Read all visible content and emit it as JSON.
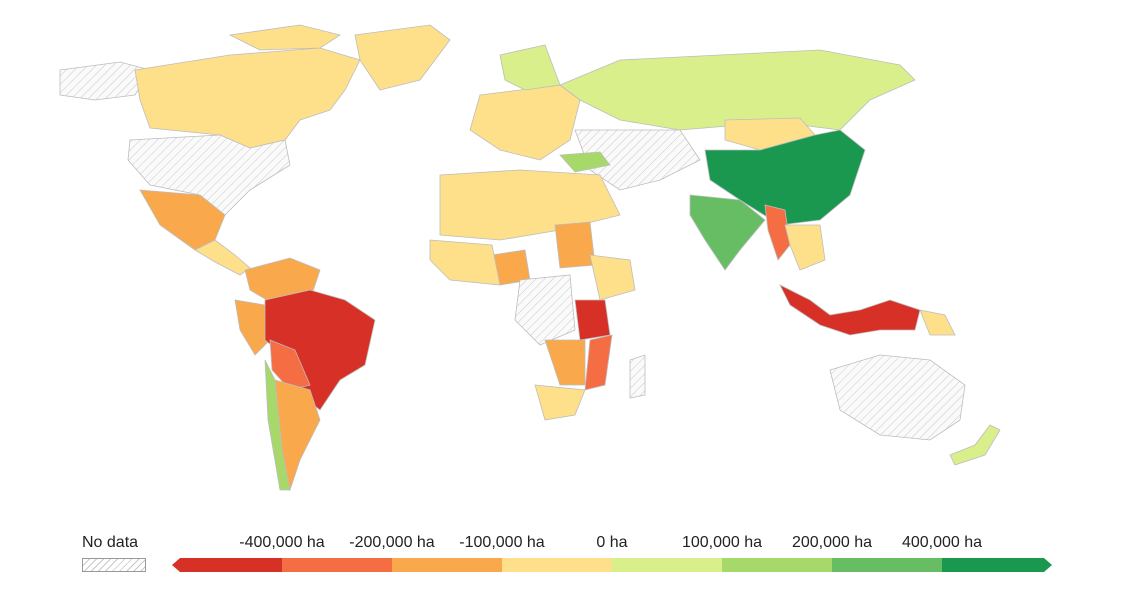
{
  "legend": {
    "no_data_label": "No data",
    "ticks": [
      "-400,000 ha",
      "-200,000 ha",
      "-100,000 ha",
      "0 ha",
      "100,000 ha",
      "200,000 ha",
      "400,000 ha"
    ],
    "colors": [
      "#d73027",
      "#f46d43",
      "#f9a94b",
      "#fee08b",
      "#d9ef8b",
      "#a6d96a",
      "#66bd63",
      "#1a9850"
    ],
    "no_data_color": "#e6e6e6"
  }
}
